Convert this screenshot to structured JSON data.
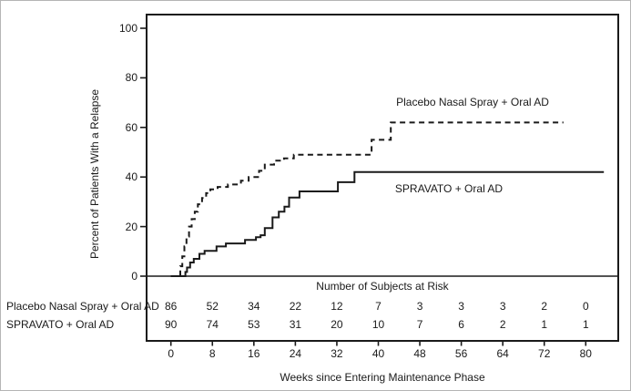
{
  "chart_data": {
    "type": "line",
    "subtype": "kaplan-meier-step",
    "title": "",
    "xlabel": "Weeks since Entering Maintenance Phase",
    "ylabel": "Percent of Patients With a Relapse",
    "xlim": [
      -4.7,
      86.3
    ],
    "ylim": [
      0,
      105.5
    ],
    "x_ticks": [
      0,
      8,
      16,
      24,
      32,
      40,
      48,
      56,
      64,
      72,
      80
    ],
    "y_ticks": [
      0,
      20,
      40,
      60,
      80,
      100
    ],
    "grid": "off",
    "legend_position": "inline-labels",
    "colors": {
      "line": "#1a1a1a",
      "background": "#ffffff"
    },
    "series": [
      {
        "name": "Placebo Nasal Spray + Oral AD",
        "style": "dashed",
        "points": [
          [
            0,
            0
          ],
          [
            1.6,
            0
          ],
          [
            1.8,
            4
          ],
          [
            2.2,
            8
          ],
          [
            2.6,
            12
          ],
          [
            3.0,
            16
          ],
          [
            3.5,
            20
          ],
          [
            4.0,
            23
          ],
          [
            4.6,
            26
          ],
          [
            5.2,
            29
          ],
          [
            6.0,
            31.5
          ],
          [
            6.8,
            33.5
          ],
          [
            7.6,
            35
          ],
          [
            9.0,
            36
          ],
          [
            11.0,
            37
          ],
          [
            13.5,
            38.5
          ],
          [
            15.0,
            40
          ],
          [
            17.0,
            42.5
          ],
          [
            18.1,
            45
          ],
          [
            19.9,
            46.6
          ],
          [
            21.8,
            47.5
          ],
          [
            23.7,
            49
          ],
          [
            38.7,
            55
          ],
          [
            42.4,
            62
          ],
          [
            75.7,
            62
          ]
        ]
      },
      {
        "name": "SPRAVATO + Oral AD",
        "style": "solid",
        "points": [
          [
            0,
            0
          ],
          [
            2.6,
            0
          ],
          [
            2.8,
            1.7
          ],
          [
            3.1,
            3.5
          ],
          [
            3.7,
            5.5
          ],
          [
            4.4,
            7
          ],
          [
            5.5,
            9
          ],
          [
            6.5,
            10.2
          ],
          [
            8.8,
            12
          ],
          [
            10.6,
            13.2
          ],
          [
            14.3,
            14.6
          ],
          [
            16.4,
            15.7
          ],
          [
            17.3,
            16.5
          ],
          [
            18.1,
            19.4
          ],
          [
            19.6,
            23.7
          ],
          [
            20.8,
            26
          ],
          [
            21.9,
            28
          ],
          [
            22.8,
            31.7
          ],
          [
            24.8,
            34.2
          ],
          [
            32.2,
            37.9
          ],
          [
            35.4,
            42
          ],
          [
            83.5,
            42
          ]
        ]
      }
    ],
    "risk_table": {
      "title": "Number of Subjects at Risk",
      "weeks": [
        0,
        8,
        16,
        24,
        32,
        40,
        48,
        56,
        64,
        72,
        80
      ],
      "rows": [
        {
          "label": "Placebo Nasal Spray + Oral AD",
          "values": [
            86,
            52,
            34,
            22,
            12,
            7,
            3,
            3,
            3,
            2,
            0
          ]
        },
        {
          "label": "SPRAVATO + Oral AD",
          "values": [
            90,
            74,
            53,
            31,
            20,
            10,
            7,
            6,
            2,
            1,
            1
          ]
        }
      ]
    }
  }
}
